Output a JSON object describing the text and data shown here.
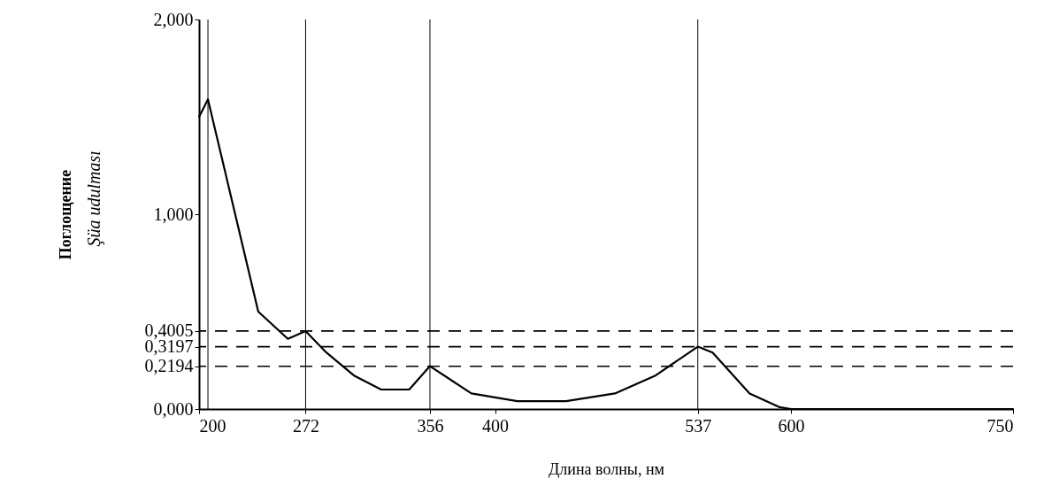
{
  "chart_data": {
    "type": "line",
    "xlabel": "Длина волны, нм",
    "ylabel": "Поглощение",
    "annotations": [
      "Şüa udulması"
    ],
    "xlim": [
      200,
      750
    ],
    "xticks": [
      200,
      272,
      356,
      400,
      537,
      600,
      750
    ],
    "ylim": [
      0,
      2
    ],
    "yticks": [
      {
        "value": 0,
        "label": "0,000"
      },
      {
        "value": 0.2194,
        "label": "0,2194"
      },
      {
        "value": 0.3197,
        "label": "0,3197"
      },
      {
        "value": 0.4005,
        "label": "0,4005"
      },
      {
        "value": 1,
        "label": "1,000"
      },
      {
        "value": 2,
        "label": "2,000"
      }
    ],
    "grid": false,
    "marker": "none",
    "line_style": "solid",
    "x": [
      200,
      206,
      240,
      260,
      272,
      286,
      305,
      323,
      342,
      356,
      384,
      415,
      448,
      481,
      508,
      537,
      547,
      572,
      592,
      600,
      750
    ],
    "series": [
      {
        "color": "#000000",
        "values": [
          1.5,
          1.59,
          0.5,
          0.36,
          0.4,
          0.29,
          0.17,
          0.1,
          0.1,
          0.22,
          0.08,
          0.04,
          0.04,
          0.08,
          0.17,
          0.32,
          0.29,
          0.08,
          0.01,
          0,
          0
        ]
      }
    ],
    "ref_lines": [
      {
        "axis": "y",
        "value": 0.4005,
        "line_style": "dashed",
        "color": "#000000"
      },
      {
        "axis": "y",
        "value": 0.3197,
        "line_style": "dashed",
        "color": "#000000"
      },
      {
        "axis": "y",
        "value": 0.2194,
        "line_style": "dashed",
        "color": "#000000"
      },
      {
        "axis": "x",
        "value": 206,
        "line_style": "solid",
        "color": "#000000"
      },
      {
        "axis": "x",
        "value": 272,
        "line_style": "solid",
        "color": "#000000"
      },
      {
        "axis": "x",
        "value": 356,
        "line_style": "solid",
        "color": "#000000"
      },
      {
        "axis": "x",
        "value": 537,
        "line_style": "solid",
        "color": "#000000"
      }
    ]
  }
}
